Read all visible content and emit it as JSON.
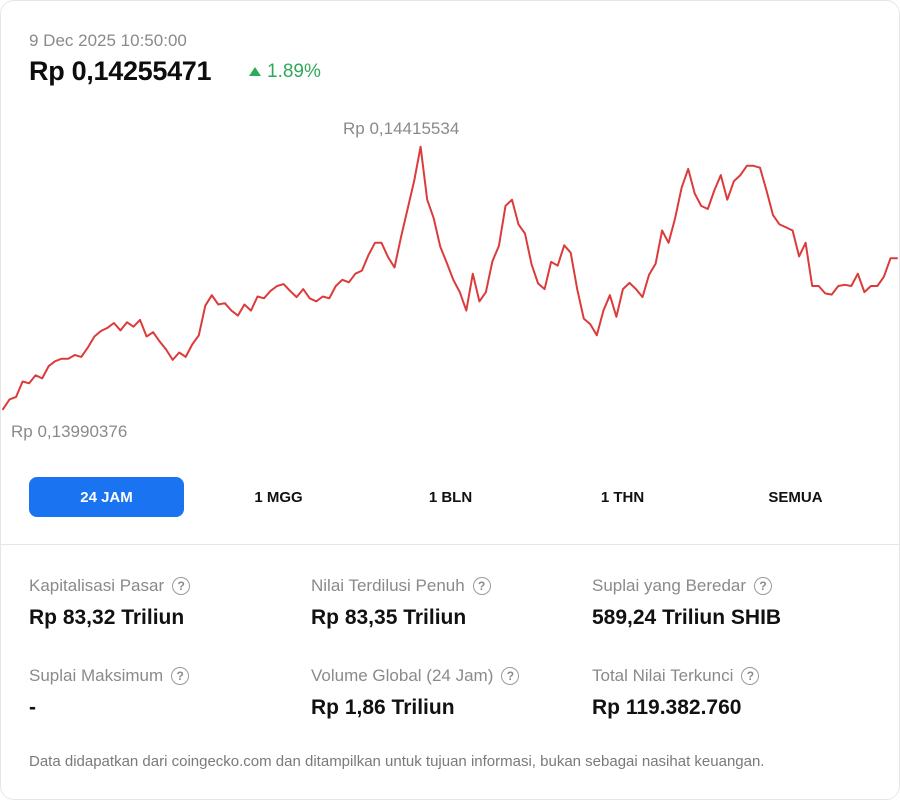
{
  "header": {
    "timestamp": "9 Dec 2025 10:50:00",
    "price": "Rp 0,14255471",
    "change": "1.89%",
    "change_color": "#2faa5a"
  },
  "chart_data": {
    "type": "line",
    "line_color": "#dc3b3b",
    "max_label": "Rp 0,14415534",
    "min_label": "Rp 0,13990376",
    "ylim": [
      0.13990376,
      0.14415534
    ],
    "values": [
      0.1399,
      0.14006,
      0.1401,
      0.14035,
      0.14032,
      0.14045,
      0.1404,
      0.1406,
      0.14068,
      0.14072,
      0.14072,
      0.14078,
      0.14075,
      0.1409,
      0.14108,
      0.14117,
      0.14122,
      0.1413,
      0.14118,
      0.14131,
      0.14124,
      0.14135,
      0.14108,
      0.14115,
      0.141,
      0.14087,
      0.1407,
      0.14082,
      0.14075,
      0.14095,
      0.1411,
      0.14158,
      0.14175,
      0.1416,
      0.14162,
      0.1415,
      0.14142,
      0.1416,
      0.1415,
      0.14173,
      0.1417,
      0.14182,
      0.1419,
      0.14193,
      0.14182,
      0.14172,
      0.14185,
      0.1417,
      0.14165,
      0.14173,
      0.1417,
      0.1419,
      0.142,
      0.14196,
      0.1421,
      0.14215,
      0.1424,
      0.1426,
      0.1426,
      0.14237,
      0.1422,
      0.1427,
      0.14315,
      0.1436,
      0.14416,
      0.1433,
      0.143,
      0.14254,
      0.14228,
      0.142,
      0.1418,
      0.1415,
      0.1421,
      0.14165,
      0.1418,
      0.1423,
      0.14255,
      0.1432,
      0.1433,
      0.1429,
      0.14275,
      0.14225,
      0.14194,
      0.14185,
      0.14229,
      0.14223,
      0.14256,
      0.14244,
      0.14185,
      0.14137,
      0.14128,
      0.1411,
      0.1415,
      0.14175,
      0.1414,
      0.14185,
      0.14195,
      0.14185,
      0.14172,
      0.14208,
      0.14226,
      0.1428,
      0.1426,
      0.143,
      0.1435,
      0.1438,
      0.1434,
      0.1432,
      0.14315,
      0.14345,
      0.1437,
      0.1433,
      0.1436,
      0.1437,
      0.14385,
      0.14385,
      0.14382,
      0.14345,
      0.14305,
      0.1429,
      0.14285,
      0.1428,
      0.14238,
      0.1426,
      0.1419,
      0.1419,
      0.14178,
      0.14176,
      0.1419,
      0.14192,
      0.1419,
      0.1421,
      0.1418,
      0.1419,
      0.1419,
      0.14205,
      0.14235,
      0.14235
    ]
  },
  "tabs": [
    {
      "label": "24 JAM",
      "active": true
    },
    {
      "label": "1 MGG",
      "active": false
    },
    {
      "label": "1 BLN",
      "active": false
    },
    {
      "label": "1 THN",
      "active": false
    },
    {
      "label": "SEMUA",
      "active": false
    }
  ],
  "stats": [
    {
      "label": "Kapitalisasi Pasar",
      "value": "Rp 83,32 Triliun"
    },
    {
      "label": "Nilai Terdilusi Penuh",
      "value": "Rp 83,35 Triliun"
    },
    {
      "label": "Suplai yang Beredar",
      "value": "589,24 Triliun SHIB"
    },
    {
      "label": "Suplai Maksimum",
      "value": "-"
    },
    {
      "label": "Volume Global (24 Jam)",
      "value": "Rp 1,86 Triliun"
    },
    {
      "label": "Total Nilai Terkunci",
      "value": "Rp 119.382.760"
    }
  ],
  "help_glyph": "?",
  "disclaimer": "Data didapatkan dari coingecko.com dan ditampilkan untuk tujuan informasi, bukan sebagai nasihat keuangan."
}
